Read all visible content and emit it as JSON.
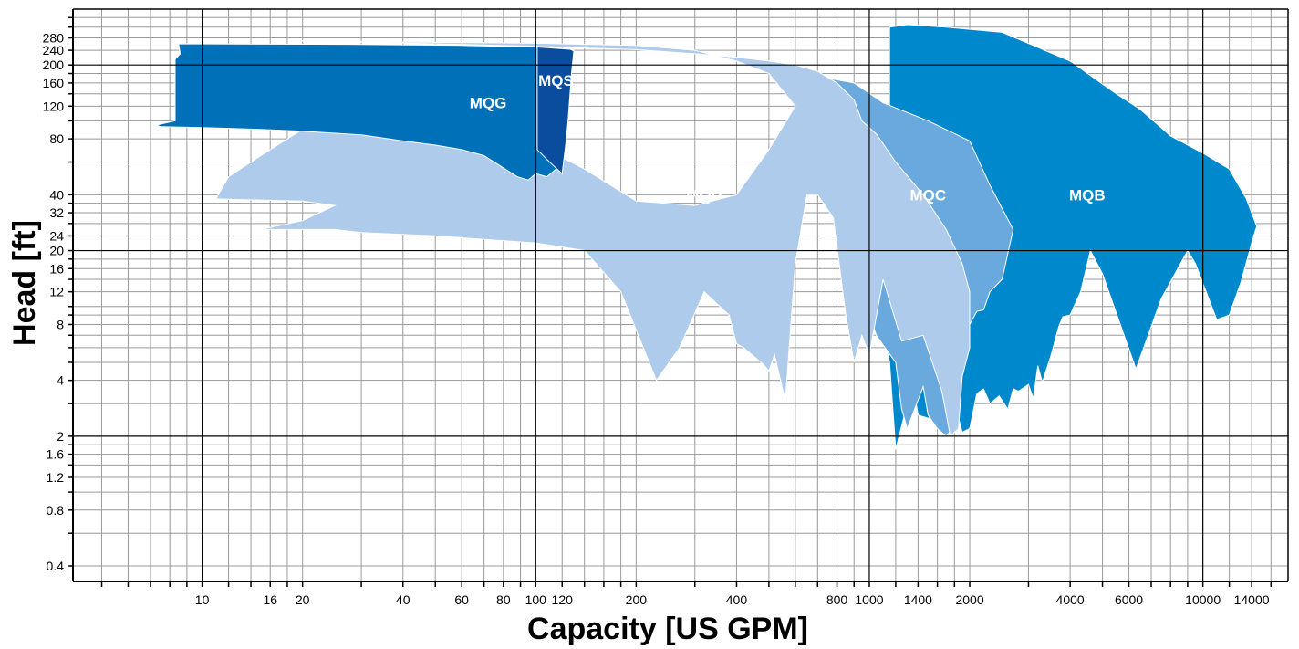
{
  "chart_data": {
    "type": "area",
    "title": "",
    "xlabel": "Capacity [US GPM]",
    "ylabel": "Head [ft]",
    "xscale": "log",
    "yscale": "log",
    "xlim": [
      4.1,
      18000
    ],
    "ylim": [
      0.33,
      400
    ],
    "grid": true,
    "x_major_gridlines": [
      1,
      10,
      100,
      1000,
      10000
    ],
    "y_major_gridlines": [
      2,
      20,
      200
    ],
    "x_minor_gridlines": [
      5,
      6,
      7,
      8,
      9,
      12,
      14,
      16,
      18,
      20,
      30,
      40,
      50,
      60,
      70,
      80,
      90,
      120,
      140,
      160,
      180,
      200,
      300,
      400,
      500,
      600,
      700,
      800,
      900,
      1200,
      1400,
      1600,
      1800,
      2000,
      3000,
      4000,
      5000,
      6000,
      7000,
      8000,
      9000,
      12000,
      14000,
      16000
    ],
    "y_minor_gridlines": [
      0.4,
      0.6,
      0.8,
      1,
      1.2,
      1.4,
      1.6,
      1.8,
      3,
      4,
      5,
      6,
      7,
      8,
      9,
      10,
      12,
      14,
      16,
      18,
      24,
      28,
      32,
      36,
      40,
      60,
      80,
      100,
      120,
      140,
      160,
      180,
      240,
      280,
      320,
      360
    ],
    "x_ticks": [
      "10",
      "16",
      "20",
      "40",
      "60",
      "80",
      "100",
      "120",
      "200",
      "400",
      "800",
      "1000",
      "1400",
      "2000",
      "4000",
      "6000",
      "10000",
      "14000"
    ],
    "y_ticks": [
      "0.4",
      "0.8",
      "1.2",
      "1.6",
      "2",
      "4",
      "8",
      "12",
      "16",
      "20",
      "24",
      "32",
      "40",
      "80",
      "120",
      "160",
      "200",
      "240",
      "280"
    ],
    "series": [
      {
        "name": "MQB",
        "color": "#0088cc",
        "label_at": [
          4500,
          40
        ],
        "points": [
          [
            1150,
            320
          ],
          [
            1300,
            330
          ],
          [
            1700,
            320
          ],
          [
            2500,
            300
          ],
          [
            4000,
            210
          ],
          [
            5200,
            150
          ],
          [
            5500,
            140
          ],
          [
            6500,
            115
          ],
          [
            8000,
            83
          ],
          [
            10000,
            67
          ],
          [
            12000,
            55
          ],
          [
            13500,
            38
          ],
          [
            14500,
            27
          ],
          [
            14200,
            24
          ],
          [
            13000,
            13.5
          ],
          [
            12000,
            9
          ],
          [
            11000,
            8.5
          ],
          [
            9500,
            17
          ],
          [
            9000,
            20
          ],
          [
            7500,
            11
          ],
          [
            6300,
            4.6
          ],
          [
            5000,
            15
          ],
          [
            4600,
            20
          ],
          [
            4300,
            12
          ],
          [
            4000,
            9
          ],
          [
            3800,
            8.8
          ],
          [
            3700,
            7.8
          ],
          [
            3500,
            5.4
          ],
          [
            3300,
            3.9
          ],
          [
            3200,
            4.8
          ],
          [
            3100,
            3.2
          ],
          [
            3000,
            3.8
          ],
          [
            2800,
            3.5
          ],
          [
            2700,
            3.6
          ],
          [
            2600,
            2.8
          ],
          [
            2450,
            3.3
          ],
          [
            2300,
            3.0
          ],
          [
            2200,
            3.6
          ],
          [
            2100,
            3.4
          ],
          [
            2000,
            2.2
          ],
          [
            1900,
            2.1
          ],
          [
            1850,
            2.5
          ],
          [
            1800,
            3.5
          ],
          [
            1600,
            2.6
          ],
          [
            1500,
            2.5
          ],
          [
            1400,
            2.6
          ],
          [
            1350,
            3.9
          ],
          [
            1200,
            1.7
          ],
          [
            1150,
            5.0
          ],
          [
            1100,
            7.5
          ],
          [
            1150,
            120
          ],
          [
            1150,
            320
          ]
        ]
      },
      {
        "name": "MQC",
        "color": "#6aa9dd",
        "label_at": [
          1500,
          40
        ],
        "points": [
          [
            620,
            190
          ],
          [
            750,
            170
          ],
          [
            900,
            160
          ],
          [
            950,
            150
          ],
          [
            1100,
            125
          ],
          [
            1500,
            100
          ],
          [
            2000,
            78
          ],
          [
            2300,
            45
          ],
          [
            2700,
            26
          ],
          [
            2500,
            14
          ],
          [
            2300,
            12
          ],
          [
            2200,
            9.6
          ],
          [
            2100,
            9.4
          ],
          [
            2000,
            8.0
          ],
          [
            1900,
            5.2
          ],
          [
            1850,
            2.4
          ],
          [
            1700,
            2.0
          ],
          [
            1600,
            2.2
          ],
          [
            1500,
            2.6
          ],
          [
            1450,
            3.7
          ],
          [
            1300,
            2.2
          ],
          [
            1250,
            2.8
          ],
          [
            1200,
            5.0
          ],
          [
            1100,
            6.2
          ],
          [
            1050,
            7.0
          ],
          [
            1000,
            9.0
          ],
          [
            900,
            10.5
          ],
          [
            850,
            9.0
          ],
          [
            850,
            17
          ],
          [
            800,
            25
          ],
          [
            750,
            40
          ],
          [
            700,
            55
          ],
          [
            640,
            62
          ],
          [
            610,
            73
          ],
          [
            640,
            85
          ],
          [
            720,
            95
          ],
          [
            720,
            145
          ],
          [
            640,
            165
          ],
          [
            620,
            190
          ]
        ]
      },
      {
        "name": "MQU",
        "color": "#aecbec",
        "label_at": [
          320,
          40
        ],
        "points": [
          [
            19,
            270
          ],
          [
            50,
            260
          ],
          [
            100,
            252
          ],
          [
            200,
            242
          ],
          [
            300,
            230
          ],
          [
            400,
            220
          ],
          [
            500,
            210
          ],
          [
            600,
            200
          ],
          [
            700,
            185
          ],
          [
            800,
            160
          ],
          [
            900,
            130
          ],
          [
            950,
            100
          ],
          [
            1050,
            85
          ],
          [
            1200,
            60
          ],
          [
            1450,
            40
          ],
          [
            1700,
            26
          ],
          [
            1900,
            17
          ],
          [
            2000,
            12
          ],
          [
            2000,
            6
          ],
          [
            1900,
            4.2
          ],
          [
            1850,
            2.2
          ],
          [
            1750,
            2.0
          ],
          [
            1650,
            3.5
          ],
          [
            1450,
            7
          ],
          [
            1250,
            6.5
          ],
          [
            1100,
            14
          ],
          [
            1000,
            5.5
          ],
          [
            950,
            7
          ],
          [
            900,
            5.0
          ],
          [
            850,
            9.0
          ],
          [
            780,
            30
          ],
          [
            700,
            40
          ],
          [
            650,
            40
          ],
          [
            600,
            17
          ],
          [
            560,
            3.1
          ],
          [
            520,
            5.5
          ],
          [
            500,
            4.5
          ],
          [
            480,
            4.9
          ],
          [
            420,
            6
          ],
          [
            400,
            6.3
          ],
          [
            380,
            9
          ],
          [
            320,
            12
          ],
          [
            270,
            6
          ],
          [
            230,
            4.0
          ],
          [
            180,
            12
          ],
          [
            140,
            20
          ],
          [
            100,
            22
          ],
          [
            70,
            23
          ],
          [
            50,
            24
          ],
          [
            30,
            25
          ],
          [
            25,
            26
          ],
          [
            15,
            26
          ],
          [
            20,
            29
          ],
          [
            25,
            35
          ],
          [
            20,
            37
          ],
          [
            11,
            38
          ],
          [
            12,
            50
          ],
          [
            15,
            65
          ],
          [
            20,
            90
          ],
          [
            40,
            88
          ],
          [
            70,
            82
          ],
          [
            100,
            75
          ],
          [
            140,
            55
          ],
          [
            200,
            37
          ],
          [
            300,
            35
          ],
          [
            400,
            40
          ],
          [
            500,
            70
          ],
          [
            600,
            120
          ],
          [
            500,
            180
          ],
          [
            400,
            210
          ],
          [
            300,
            240
          ],
          [
            200,
            255
          ],
          [
            100,
            262
          ],
          [
            50,
            265
          ],
          [
            19,
            270
          ]
        ]
      },
      {
        "name": "MQG",
        "color": "#0070b8",
        "label_at": [
          72,
          125
        ],
        "points": [
          [
            8.5,
            260
          ],
          [
            30,
            258
          ],
          [
            60,
            255
          ],
          [
            100,
            250
          ],
          [
            130,
            240
          ],
          [
            125,
            160
          ],
          [
            123,
            120
          ],
          [
            120,
            90
          ],
          [
            115,
            55
          ],
          [
            108,
            50
          ],
          [
            100,
            52
          ],
          [
            95,
            48
          ],
          [
            88,
            50
          ],
          [
            70,
            65
          ],
          [
            60,
            70
          ],
          [
            50,
            74
          ],
          [
            40,
            78
          ],
          [
            30,
            84
          ],
          [
            20,
            88
          ],
          [
            15,
            90
          ],
          [
            10,
            92
          ],
          [
            7.5,
            93
          ],
          [
            7.3,
            95
          ],
          [
            8.3,
            100
          ],
          [
            8.3,
            215
          ],
          [
            8.6,
            230
          ],
          [
            8.5,
            260
          ]
        ]
      },
      {
        "name": "MQS",
        "color": "#0a4d9e",
        "label_at": [
          115,
          165
        ],
        "points": [
          [
            101,
            250
          ],
          [
            127,
            243
          ],
          [
            130,
            238
          ],
          [
            128,
            180
          ],
          [
            125,
            100
          ],
          [
            123,
            75
          ],
          [
            120,
            52
          ],
          [
            110,
            60
          ],
          [
            101,
            70
          ],
          [
            101,
            250
          ]
        ]
      }
    ]
  }
}
